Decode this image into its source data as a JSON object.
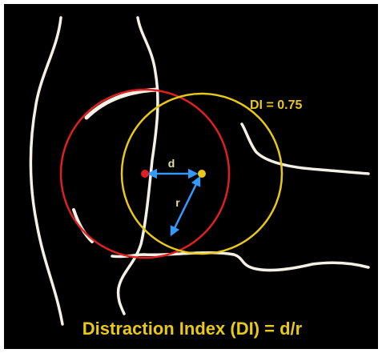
{
  "labels": {
    "index_value": "DI = 0.75",
    "distance": "d",
    "radius": "r",
    "caption": "Distraction Index (DI) = d/r"
  }
}
